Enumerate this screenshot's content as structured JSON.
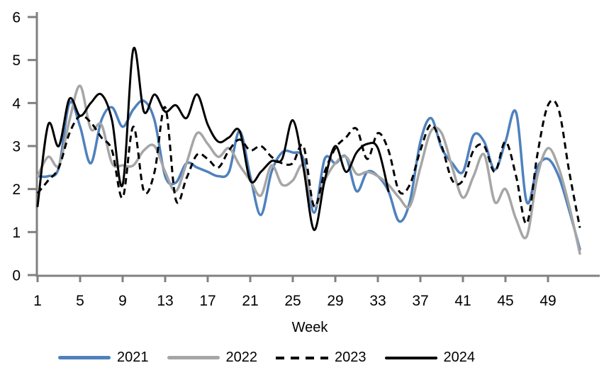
{
  "axes": {
    "x": {
      "label": "Week",
      "ticks": [
        1,
        5,
        9,
        13,
        17,
        21,
        25,
        29,
        33,
        37,
        41,
        45,
        49
      ],
      "min": 1,
      "max": 52
    },
    "y": {
      "ticks": [
        0,
        1,
        2,
        3,
        4,
        5,
        6
      ],
      "min": 0,
      "max": 6
    }
  },
  "legend": {
    "position": "bottom",
    "items": [
      {
        "label": "2021",
        "color": "#4F81BD",
        "style": "solid"
      },
      {
        "label": "2022",
        "color": "#A6A6A6",
        "style": "solid"
      },
      {
        "label": "2023",
        "color": "#000000",
        "style": "dashed"
      },
      {
        "label": "2024",
        "color": "#000000",
        "style": "solid"
      }
    ]
  },
  "style": {
    "axis_color": "#808080",
    "background": "#ffffff",
    "grid": false,
    "smoothed_lines": true
  },
  "chart_data": {
    "type": "line",
    "title": "",
    "xlabel": "Week",
    "ylabel": "",
    "xlim": [
      1,
      52
    ],
    "ylim": [
      0,
      6
    ],
    "x_ticks": [
      1,
      5,
      9,
      13,
      17,
      21,
      25,
      29,
      33,
      37,
      41,
      45,
      49
    ],
    "y_ticks": [
      0,
      1,
      2,
      3,
      4,
      5,
      6
    ],
    "weeks": [
      1,
      2,
      3,
      4,
      5,
      6,
      7,
      8,
      9,
      10,
      11,
      12,
      13,
      14,
      15,
      16,
      17,
      18,
      19,
      20,
      21,
      22,
      23,
      24,
      25,
      26,
      27,
      28,
      29,
      30,
      31,
      32,
      33,
      34,
      35,
      36,
      37,
      38,
      39,
      40,
      41,
      42,
      43,
      44,
      45,
      46,
      47,
      48,
      49,
      50,
      51,
      52
    ],
    "series": [
      {
        "name": "2021",
        "color": "#4F81BD",
        "style": "solid",
        "width": 3.5,
        "x_start": 1,
        "values": [
          2.3,
          2.3,
          2.5,
          4.0,
          3.45,
          2.6,
          3.6,
          3.9,
          3.45,
          3.85,
          4.05,
          3.6,
          2.3,
          2.15,
          2.6,
          2.5,
          2.4,
          2.3,
          2.4,
          3.35,
          2.3,
          1.4,
          2.4,
          2.85,
          2.85,
          2.7,
          1.45,
          2.7,
          2.6,
          2.75,
          1.95,
          2.4,
          2.3,
          1.95,
          1.25,
          1.7,
          3.1,
          3.65,
          2.95,
          2.6,
          2.4,
          3.25,
          3.1,
          2.45,
          3.1,
          3.78,
          1.7,
          2.5,
          2.7,
          2.3,
          1.5,
          0.6
        ]
      },
      {
        "name": "2022",
        "color": "#A6A6A6",
        "style": "solid",
        "width": 3.5,
        "x_start": 1,
        "values": [
          2.3,
          2.75,
          2.55,
          3.6,
          4.4,
          3.4,
          3.5,
          2.6,
          2.55,
          2.55,
          2.9,
          3.0,
          2.4,
          1.95,
          2.6,
          3.3,
          3.05,
          2.75,
          2.95,
          2.55,
          2.2,
          1.85,
          2.55,
          2.1,
          2.2,
          2.55,
          1.6,
          2.2,
          2.6,
          2.75,
          2.35,
          2.4,
          2.3,
          2.1,
          1.8,
          1.6,
          2.5,
          3.35,
          3.3,
          2.5,
          1.8,
          2.3,
          2.8,
          1.7,
          2.0,
          1.3,
          0.9,
          2.3,
          2.95,
          2.5,
          1.6,
          0.5
        ]
      },
      {
        "name": "2023",
        "color": "#000000",
        "style": "dashed",
        "width": 3,
        "x_start": 1,
        "values": [
          1.9,
          2.2,
          2.5,
          3.3,
          3.7,
          3.55,
          3.2,
          2.9,
          1.8,
          3.45,
          1.95,
          2.4,
          3.9,
          1.75,
          2.25,
          2.8,
          2.7,
          2.5,
          2.9,
          3.15,
          2.9,
          3.0,
          2.75,
          2.6,
          2.6,
          3.0,
          1.6,
          2.4,
          2.95,
          3.2,
          3.4,
          2.7,
          3.3,
          2.9,
          1.95,
          2.1,
          2.9,
          3.5,
          3.0,
          2.2,
          2.2,
          2.9,
          3.0,
          2.4,
          3.1,
          2.3,
          1.2,
          2.8,
          3.95,
          3.85,
          2.4,
          1.1
        ]
      },
      {
        "name": "2024",
        "color": "#000000",
        "style": "solid",
        "width": 3,
        "x_start": 1,
        "values": [
          1.6,
          3.5,
          3.0,
          4.1,
          3.7,
          4.0,
          4.2,
          3.6,
          2.1,
          5.25,
          3.8,
          4.2,
          3.8,
          3.95,
          3.65,
          4.2,
          3.5,
          3.1,
          3.2,
          3.35,
          2.2,
          2.4,
          2.65,
          2.7,
          3.6,
          2.5,
          1.05,
          2.2,
          3.0,
          2.4,
          2.85,
          3.05,
          2.95,
          1.95
        ]
      }
    ],
    "legend_entries": [
      "2021",
      "2022",
      "2023",
      "2024"
    ],
    "note": "2024 series ends at week 34"
  }
}
